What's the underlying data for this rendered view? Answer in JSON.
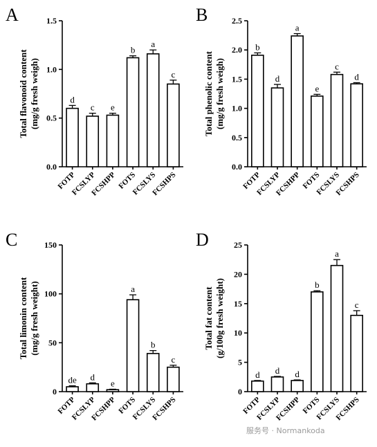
{
  "chart_data": [
    {
      "panel": "A",
      "type": "bar",
      "ylabel_line1": "Total flavonoid content",
      "ylabel_line2": "(mg/g fresh weigh)",
      "categories": [
        "FOTP",
        "FCSLYP",
        "FCSHPP",
        "FOTS",
        "FCSLYS",
        "FCSHPS"
      ],
      "values": [
        0.6,
        0.52,
        0.53,
        1.12,
        1.16,
        0.85
      ],
      "errors": [
        0.03,
        0.03,
        0.02,
        0.02,
        0.04,
        0.04
      ],
      "letters": [
        "d",
        "c",
        "e",
        "b",
        "a",
        "c"
      ],
      "ylim": [
        0,
        1.5
      ],
      "yticks": [
        0,
        0.5,
        1.0,
        1.5
      ],
      "ytick_labels": [
        "0.0",
        "0.5",
        "1.0",
        "1.5"
      ]
    },
    {
      "panel": "B",
      "type": "bar",
      "ylabel_line1": "Total phenolic content",
      "ylabel_line2": "(mg/g fresh weigh)",
      "categories": [
        "FOTP",
        "FCSLYP",
        "FCSHPP",
        "FOTS",
        "FCSLYS",
        "FCSHPS"
      ],
      "values": [
        1.91,
        1.35,
        2.24,
        1.21,
        1.58,
        1.42
      ],
      "errors": [
        0.04,
        0.06,
        0.04,
        0.03,
        0.04,
        0.02
      ],
      "letters": [
        "b",
        "d",
        "a",
        "e",
        "c",
        "d"
      ],
      "ylim": [
        0,
        2.5
      ],
      "yticks": [
        0,
        0.5,
        1.0,
        1.5,
        2.0,
        2.5
      ],
      "ytick_labels": [
        "0.0",
        "0.5",
        "1.0",
        "1.5",
        "2.0",
        "2.5"
      ]
    },
    {
      "panel": "C",
      "type": "bar",
      "ylabel_line1": "Total limonin content",
      "ylabel_line2": "(mg/g fresh weight)",
      "categories": [
        "FOTP",
        "FCSLYP",
        "FCSHPP",
        "FOTS",
        "FCSLYS",
        "FCSHPS"
      ],
      "values": [
        5,
        8,
        2,
        94,
        39,
        25
      ],
      "errors": [
        1,
        1,
        0.5,
        5,
        3,
        2
      ],
      "letters": [
        "de",
        "d",
        "e",
        "a",
        "b",
        "c"
      ],
      "ylim": [
        0,
        150
      ],
      "yticks": [
        0,
        50,
        100,
        150
      ],
      "ytick_labels": [
        "0",
        "50",
        "100",
        "150"
      ]
    },
    {
      "panel": "D",
      "type": "bar",
      "ylabel_line1": "Total fat content",
      "ylabel_line2": "(g/100g fresh weight)",
      "categories": [
        "FOTP",
        "FCSLYP",
        "FCSHPP",
        "FOTS",
        "FCSLYS",
        "FCSHPS"
      ],
      "values": [
        1.8,
        2.5,
        1.9,
        17.0,
        21.5,
        13.0
      ],
      "errors": [
        0.1,
        0.1,
        0.1,
        0.2,
        1.0,
        0.8
      ],
      "letters": [
        "d",
        "d",
        "d",
        "b",
        "a",
        "c"
      ],
      "ylim": [
        0,
        25
      ],
      "yticks": [
        0,
        5,
        10,
        15,
        20,
        25
      ],
      "ytick_labels": [
        "0",
        "5",
        "10",
        "15",
        "20",
        "25"
      ]
    }
  ],
  "watermark": "服务号 · Normankoda"
}
